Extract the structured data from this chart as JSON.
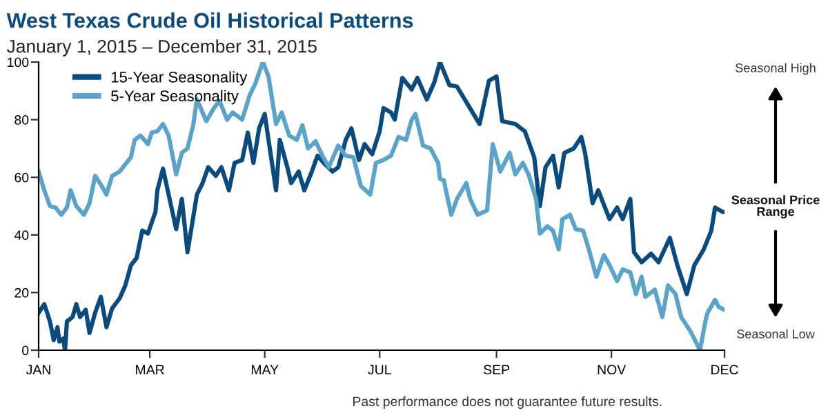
{
  "chart_data": {
    "type": "line",
    "title": "West Texas Crude Oil Historical Patterns",
    "subtitle": "January 1, 2015 – December 31, 2015",
    "annotations": [
      "Seasonal High",
      "Seasonal Price Range",
      "Seasonal Low",
      "Past performance does not guarantee future results."
    ],
    "xlim": [
      "2015-01-01",
      "2015-12-31"
    ],
    "xticks": [
      {
        "value": "2015-01-01",
        "label": "JAN"
      },
      {
        "value": "2015-03-01",
        "label": "MAR"
      },
      {
        "value": "2015-05-01",
        "label": "MAY"
      },
      {
        "value": "2015-07-01",
        "label": "JUL"
      },
      {
        "value": "2015-09-01",
        "label": "SEP"
      },
      {
        "value": "2015-11-01",
        "label": "NOV"
      },
      {
        "value": "2015-12-31",
        "label": "DEC"
      }
    ],
    "ylim": [
      0,
      100
    ],
    "yticks": [
      0,
      20,
      40,
      60,
      80,
      100
    ],
    "legend": "top left",
    "series": [
      {
        "name": "15-Year Seasonality",
        "color": "#0b4a7d",
        "x": [
          "2015-01-01",
          "2015-01-04",
          "2015-01-07",
          "2015-01-09",
          "2015-01-11",
          "2015-01-12",
          "2015-01-14",
          "2015-01-15",
          "2015-01-16",
          "2015-01-19",
          "2015-01-21",
          "2015-01-23",
          "2015-01-26",
          "2015-01-28",
          "2015-01-31",
          "2015-02-03",
          "2015-02-06",
          "2015-02-09",
          "2015-02-13",
          "2015-02-16",
          "2015-02-19",
          "2015-02-22",
          "2015-02-25",
          "2015-02-28",
          "2015-03-04",
          "2015-03-05",
          "2015-03-08",
          "2015-03-11",
          "2015-03-15",
          "2015-03-18",
          "2015-03-21",
          "2015-03-24",
          "2015-03-26",
          "2015-03-29",
          "2015-04-01",
          "2015-04-05",
          "2015-04-08",
          "2015-04-12",
          "2015-04-15",
          "2015-04-19",
          "2015-04-22",
          "2015-04-25",
          "2015-04-28",
          "2015-05-01",
          "2015-05-03",
          "2015-05-07",
          "2015-05-09",
          "2015-05-13",
          "2015-05-15",
          "2015-05-19",
          "2015-05-22",
          "2015-05-26",
          "2015-05-29",
          "2015-06-02",
          "2015-06-06",
          "2015-06-09",
          "2015-06-13",
          "2015-06-16",
          "2015-06-20",
          "2015-06-23",
          "2015-06-27",
          "2015-07-01",
          "2015-07-03",
          "2015-07-07",
          "2015-07-09",
          "2015-07-13",
          "2015-07-18",
          "2015-07-21",
          "2015-07-26",
          "2015-07-30",
          "2015-08-02",
          "2015-08-07",
          "2015-08-11",
          "2015-08-17",
          "2015-08-23",
          "2015-08-28",
          "2015-09-01",
          "2015-09-04",
          "2015-09-11",
          "2015-09-16",
          "2015-09-21",
          "2015-09-24",
          "2015-09-27",
          "2015-10-01",
          "2015-10-04",
          "2015-10-07",
          "2015-10-12",
          "2015-10-16",
          "2015-10-18",
          "2015-10-22",
          "2015-10-25",
          "2015-10-31",
          "2015-11-04",
          "2015-11-07",
          "2015-11-11",
          "2015-11-13",
          "2015-11-17",
          "2015-11-22",
          "2015-11-26",
          "2015-12-02",
          "2015-12-06",
          "2015-12-11",
          "2015-12-15",
          "2015-12-20",
          "2015-12-24",
          "2015-12-26",
          "2015-12-30",
          "2015-12-31"
        ],
        "values": [
          13,
          16,
          10,
          3.5,
          8,
          3,
          4,
          0,
          10,
          11.5,
          16,
          11.5,
          14,
          6,
          13,
          18.5,
          8,
          14.5,
          18,
          22.5,
          29.5,
          32,
          41.5,
          40.5,
          48,
          55.5,
          63,
          54,
          42,
          52.5,
          34,
          46,
          54,
          58,
          63.5,
          60.5,
          63.5,
          55.5,
          65,
          66,
          75.5,
          65,
          77,
          82,
          73,
          55.5,
          73,
          63.5,
          58,
          62,
          55.5,
          62,
          67.5,
          64.5,
          62,
          63.5,
          73,
          77,
          66,
          71.5,
          68,
          76,
          84,
          82.5,
          80,
          94.5,
          90.5,
          94.5,
          87,
          93,
          100,
          92,
          91.5,
          85,
          78.5,
          93.5,
          95,
          79.5,
          78.5,
          76,
          67,
          50,
          63.5,
          67.5,
          56.5,
          68.5,
          70,
          74,
          68.5,
          51,
          55.5,
          45.5,
          49.5,
          45.5,
          52.5,
          34,
          30.5,
          33.5,
          30.5,
          39,
          29.5,
          19.5,
          29.5,
          35,
          41.5,
          49.5,
          48,
          48
        ]
      },
      {
        "name": "5-Year Seasonality",
        "color": "#5ba3c9",
        "x": [
          "2015-01-01",
          "2015-01-04",
          "2015-01-07",
          "2015-01-10",
          "2015-01-13",
          "2015-01-16",
          "2015-01-18",
          "2015-01-21",
          "2015-01-25",
          "2015-01-28",
          "2015-01-31",
          "2015-02-03",
          "2015-02-06",
          "2015-02-09",
          "2015-02-13",
          "2015-02-16",
          "2015-02-19",
          "2015-02-21",
          "2015-02-24",
          "2015-02-28",
          "2015-03-02",
          "2015-03-05",
          "2015-03-08",
          "2015-03-11",
          "2015-03-15",
          "2015-03-18",
          "2015-03-21",
          "2015-03-24",
          "2015-03-26",
          "2015-03-31",
          "2015-04-04",
          "2015-04-07",
          "2015-04-11",
          "2015-04-14",
          "2015-04-19",
          "2015-04-23",
          "2015-04-26",
          "2015-04-30",
          "2015-05-03",
          "2015-05-07",
          "2015-05-10",
          "2015-05-14",
          "2015-05-18",
          "2015-05-21",
          "2015-05-24",
          "2015-05-28",
          "2015-06-01",
          "2015-06-04",
          "2015-06-09",
          "2015-06-13",
          "2015-06-17",
          "2015-06-21",
          "2015-06-26",
          "2015-06-29",
          "2015-07-03",
          "2015-07-07",
          "2015-07-11",
          "2015-07-15",
          "2015-07-18",
          "2015-07-20",
          "2015-07-24",
          "2015-07-28",
          "2015-08-01",
          "2015-08-02",
          "2015-08-04",
          "2015-08-08",
          "2015-08-11",
          "2015-08-16",
          "2015-08-18",
          "2015-08-22",
          "2015-08-27",
          "2015-08-30",
          "2015-09-03",
          "2015-09-08",
          "2015-09-11",
          "2015-09-15",
          "2015-09-18",
          "2015-09-22",
          "2015-09-24",
          "2015-09-28",
          "2015-10-01",
          "2015-10-04",
          "2015-10-06",
          "2015-10-10",
          "2015-10-13",
          "2015-10-17",
          "2015-10-20",
          "2015-10-24",
          "2015-10-28",
          "2015-10-31",
          "2015-11-04",
          "2015-11-07",
          "2015-11-11",
          "2015-11-14",
          "2015-11-17",
          "2015-11-19",
          "2015-11-24",
          "2015-11-28",
          "2015-12-01",
          "2015-12-05",
          "2015-12-08",
          "2015-12-13",
          "2015-12-18",
          "2015-12-21",
          "2015-12-22",
          "2015-12-26",
          "2015-12-28",
          "2015-12-31"
        ],
        "values": [
          62,
          55.5,
          50,
          49.5,
          47,
          49.5,
          55.5,
          50,
          47,
          51,
          60.5,
          57.5,
          54,
          60.5,
          62,
          64.5,
          67,
          73,
          74.5,
          71.5,
          75.5,
          76,
          78.5,
          74.5,
          61,
          68.5,
          70,
          78,
          87,
          79.5,
          84,
          86.5,
          80,
          82.5,
          80,
          88.5,
          92.5,
          100,
          95,
          78.5,
          82.5,
          74.5,
          73,
          78,
          70,
          72.5,
          67,
          63.5,
          71,
          67.5,
          67,
          57,
          54,
          65,
          66,
          67.5,
          74,
          73,
          80,
          82,
          71,
          70,
          65,
          59.5,
          59,
          47,
          52.5,
          58,
          52.5,
          47,
          48.5,
          71.5,
          62,
          68.5,
          61,
          65,
          61,
          52.5,
          40.5,
          43,
          41.5,
          35,
          45.5,
          47,
          42,
          41.5,
          35,
          25.5,
          33,
          29.5,
          24,
          28,
          27,
          19.5,
          25.5,
          18.5,
          21,
          11.5,
          22.5,
          19.5,
          11.5,
          6.5,
          0,
          10.5,
          13,
          17.5,
          15,
          14
        ]
      }
    ]
  }
}
